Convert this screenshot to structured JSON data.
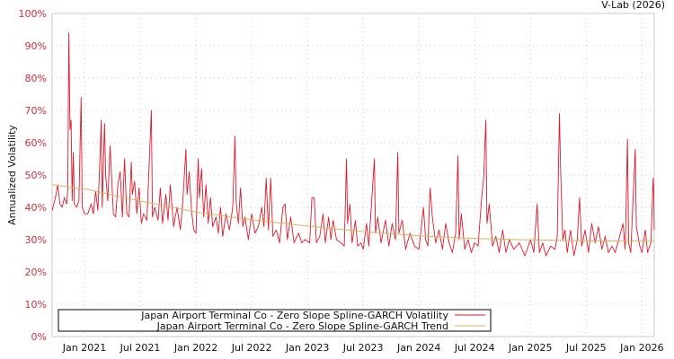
{
  "chart_data": {
    "type": "line",
    "title": "",
    "credit": "V-Lab (2026)",
    "xlabel": "",
    "ylabel": "Annualized Volatility",
    "ylim": [
      0,
      100
    ],
    "xlim": [
      2020.71,
      2026.11
    ],
    "y_ticks": [
      0,
      10,
      20,
      30,
      40,
      50,
      60,
      70,
      80,
      90,
      100
    ],
    "y_tick_labels": [
      "0%",
      "10%",
      "20%",
      "30%",
      "40%",
      "50%",
      "60%",
      "70%",
      "80%",
      "90%",
      "100%"
    ],
    "x_ticks": [
      2021.0,
      2021.5,
      2022.0,
      2022.5,
      2023.0,
      2023.5,
      2024.0,
      2024.5,
      2025.0,
      2025.5,
      2026.0
    ],
    "x_tick_labels": [
      "Jan 2021",
      "Jul 2021",
      "Jan 2022",
      "Jul 2022",
      "Jan 2023",
      "Jul 2023",
      "Jan 2024",
      "Jul 2024",
      "Jan 2025",
      "Jul 2025",
      "Jan 2026"
    ],
    "grid": true,
    "legend_position": "bottom-left",
    "colors": {
      "volatility": "#dd1a2b",
      "trend": "#d8b45c",
      "tick_label": "#d22b3a"
    },
    "series": [
      {
        "name": "Japan Airport Terminal Co - Zero Slope Spline-GARCH Volatility",
        "points": [
          [
            2020.71,
            39
          ],
          [
            2020.74,
            43
          ],
          [
            2020.76,
            47
          ],
          [
            2020.78,
            41
          ],
          [
            2020.8,
            40
          ],
          [
            2020.82,
            43
          ],
          [
            2020.84,
            41
          ],
          [
            2020.85,
            45
          ],
          [
            2020.86,
            94
          ],
          [
            2020.87,
            64
          ],
          [
            2020.88,
            67
          ],
          [
            2020.89,
            42
          ],
          [
            2020.9,
            57
          ],
          [
            2020.91,
            41
          ],
          [
            2020.93,
            40
          ],
          [
            2020.95,
            42
          ],
          [
            2020.97,
            74
          ],
          [
            2020.98,
            40
          ],
          [
            2021.0,
            38
          ],
          [
            2021.03,
            38
          ],
          [
            2021.06,
            41
          ],
          [
            2021.08,
            38
          ],
          [
            2021.1,
            45
          ],
          [
            2021.12,
            39
          ],
          [
            2021.14,
            56
          ],
          [
            2021.15,
            67
          ],
          [
            2021.16,
            40
          ],
          [
            2021.18,
            66
          ],
          [
            2021.19,
            50
          ],
          [
            2021.21,
            42
          ],
          [
            2021.23,
            59
          ],
          [
            2021.26,
            38
          ],
          [
            2021.28,
            37
          ],
          [
            2021.3,
            47
          ],
          [
            2021.32,
            51
          ],
          [
            2021.34,
            37
          ],
          [
            2021.36,
            55
          ],
          [
            2021.38,
            38
          ],
          [
            2021.4,
            37
          ],
          [
            2021.42,
            54
          ],
          [
            2021.43,
            44
          ],
          [
            2021.45,
            48
          ],
          [
            2021.47,
            38
          ],
          [
            2021.49,
            46
          ],
          [
            2021.51,
            35
          ],
          [
            2021.53,
            38
          ],
          [
            2021.56,
            36
          ],
          [
            2021.6,
            70
          ],
          [
            2021.61,
            37
          ],
          [
            2021.63,
            40
          ],
          [
            2021.66,
            36
          ],
          [
            2021.68,
            46
          ],
          [
            2021.7,
            35
          ],
          [
            2021.73,
            44
          ],
          [
            2021.75,
            36
          ],
          [
            2021.77,
            47
          ],
          [
            2021.8,
            34
          ],
          [
            2021.83,
            40
          ],
          [
            2021.86,
            33
          ],
          [
            2021.88,
            41
          ],
          [
            2021.91,
            58
          ],
          [
            2021.92,
            44
          ],
          [
            2021.94,
            51
          ],
          [
            2021.96,
            39
          ],
          [
            2021.98,
            33
          ],
          [
            2022.0,
            32
          ],
          [
            2022.02,
            55
          ],
          [
            2022.03,
            43
          ],
          [
            2022.05,
            52
          ],
          [
            2022.07,
            37
          ],
          [
            2022.09,
            47
          ],
          [
            2022.11,
            35
          ],
          [
            2022.13,
            43
          ],
          [
            2022.15,
            34
          ],
          [
            2022.18,
            37
          ],
          [
            2022.2,
            32
          ],
          [
            2022.22,
            40
          ],
          [
            2022.24,
            31
          ],
          [
            2022.27,
            38
          ],
          [
            2022.3,
            33
          ],
          [
            2022.33,
            40
          ],
          [
            2022.35,
            62
          ],
          [
            2022.36,
            42
          ],
          [
            2022.38,
            35
          ],
          [
            2022.4,
            46
          ],
          [
            2022.42,
            34
          ],
          [
            2022.44,
            37
          ],
          [
            2022.47,
            30
          ],
          [
            2022.5,
            38
          ],
          [
            2022.53,
            32
          ],
          [
            2022.56,
            34
          ],
          [
            2022.59,
            40
          ],
          [
            2022.61,
            34
          ],
          [
            2022.63,
            49
          ],
          [
            2022.65,
            33
          ],
          [
            2022.67,
            49
          ],
          [
            2022.69,
            31
          ],
          [
            2022.72,
            33
          ],
          [
            2022.75,
            29
          ],
          [
            2022.78,
            40
          ],
          [
            2022.8,
            41
          ],
          [
            2022.82,
            30
          ],
          [
            2022.85,
            37
          ],
          [
            2022.88,
            29
          ],
          [
            2022.92,
            32
          ],
          [
            2022.95,
            29
          ],
          [
            2022.98,
            30
          ],
          [
            2023.02,
            29
          ],
          [
            2023.04,
            43
          ],
          [
            2023.06,
            43
          ],
          [
            2023.08,
            29
          ],
          [
            2023.11,
            31
          ],
          [
            2023.14,
            38
          ],
          [
            2023.16,
            29
          ],
          [
            2023.19,
            37
          ],
          [
            2023.21,
            30
          ],
          [
            2023.23,
            36
          ],
          [
            2023.26,
            30
          ],
          [
            2023.3,
            29
          ],
          [
            2023.33,
            28
          ],
          [
            2023.35,
            55
          ],
          [
            2023.36,
            35
          ],
          [
            2023.38,
            41
          ],
          [
            2023.4,
            29
          ],
          [
            2023.43,
            36
          ],
          [
            2023.45,
            28
          ],
          [
            2023.48,
            29
          ],
          [
            2023.5,
            27
          ],
          [
            2023.53,
            35
          ],
          [
            2023.55,
            28
          ],
          [
            2023.6,
            55
          ],
          [
            2023.61,
            32
          ],
          [
            2023.63,
            37
          ],
          [
            2023.66,
            29
          ],
          [
            2023.7,
            36
          ],
          [
            2023.73,
            28
          ],
          [
            2023.76,
            35
          ],
          [
            2023.79,
            30
          ],
          [
            2023.81,
            57
          ],
          [
            2023.82,
            32
          ],
          [
            2023.85,
            36
          ],
          [
            2023.88,
            27
          ],
          [
            2023.92,
            32
          ],
          [
            2023.96,
            28
          ],
          [
            2024.0,
            27
          ],
          [
            2024.04,
            40
          ],
          [
            2024.06,
            30
          ],
          [
            2024.08,
            28
          ],
          [
            2024.1,
            46
          ],
          [
            2024.12,
            37
          ],
          [
            2024.15,
            29
          ],
          [
            2024.18,
            33
          ],
          [
            2024.21,
            27
          ],
          [
            2024.24,
            35
          ],
          [
            2024.27,
            29
          ],
          [
            2024.3,
            26
          ],
          [
            2024.33,
            32
          ],
          [
            2024.35,
            56
          ],
          [
            2024.36,
            30
          ],
          [
            2024.38,
            38
          ],
          [
            2024.41,
            27
          ],
          [
            2024.44,
            30
          ],
          [
            2024.47,
            26
          ],
          [
            2024.5,
            29
          ],
          [
            2024.53,
            28
          ],
          [
            2024.56,
            42
          ],
          [
            2024.58,
            49
          ],
          [
            2024.6,
            67
          ],
          [
            2024.61,
            35
          ],
          [
            2024.63,
            41
          ],
          [
            2024.66,
            28
          ],
          [
            2024.69,
            31
          ],
          [
            2024.72,
            26
          ],
          [
            2024.75,
            33
          ],
          [
            2024.78,
            26
          ],
          [
            2024.81,
            30
          ],
          [
            2024.85,
            27
          ],
          [
            2024.9,
            29
          ],
          [
            2024.95,
            25
          ],
          [
            2025.0,
            30
          ],
          [
            2025.03,
            26
          ],
          [
            2025.06,
            41
          ],
          [
            2025.08,
            26
          ],
          [
            2025.11,
            29
          ],
          [
            2025.14,
            25
          ],
          [
            2025.18,
            28
          ],
          [
            2025.22,
            27
          ],
          [
            2025.24,
            31
          ],
          [
            2025.26,
            69
          ],
          [
            2025.27,
            52
          ],
          [
            2025.29,
            30
          ],
          [
            2025.31,
            33
          ],
          [
            2025.33,
            26
          ],
          [
            2025.36,
            33
          ],
          [
            2025.39,
            25
          ],
          [
            2025.42,
            30
          ],
          [
            2025.44,
            43
          ],
          [
            2025.46,
            28
          ],
          [
            2025.49,
            33
          ],
          [
            2025.52,
            26
          ],
          [
            2025.55,
            35
          ],
          [
            2025.58,
            29
          ],
          [
            2025.61,
            34
          ],
          [
            2025.64,
            27
          ],
          [
            2025.67,
            31
          ],
          [
            2025.7,
            26
          ],
          [
            2025.73,
            28
          ],
          [
            2025.76,
            26
          ],
          [
            2025.8,
            31
          ],
          [
            2025.83,
            35
          ],
          [
            2025.85,
            27
          ],
          [
            2025.87,
            61
          ],
          [
            2025.88,
            29
          ],
          [
            2025.9,
            26
          ],
          [
            2025.94,
            58
          ],
          [
            2025.95,
            34
          ],
          [
            2025.98,
            28
          ],
          [
            2026.0,
            26
          ],
          [
            2026.03,
            33
          ],
          [
            2026.05,
            26
          ],
          [
            2026.08,
            29
          ],
          [
            2026.1,
            49
          ],
          [
            2026.105,
            45
          ],
          [
            2026.11,
            33
          ]
        ]
      },
      {
        "name": "Japan Airport Terminal Co - Zero Slope Spline-GARCH Trend",
        "points": [
          [
            2020.71,
            47
          ],
          [
            2021.0,
            45.7
          ],
          [
            2021.5,
            42
          ],
          [
            2022.0,
            38.5
          ],
          [
            2022.5,
            36.2
          ],
          [
            2023.0,
            34.2
          ],
          [
            2023.5,
            32.5
          ],
          [
            2024.0,
            31.2
          ],
          [
            2024.5,
            30.4
          ],
          [
            2025.0,
            29.9
          ],
          [
            2025.5,
            29.6
          ],
          [
            2026.11,
            29.5
          ]
        ]
      }
    ]
  }
}
